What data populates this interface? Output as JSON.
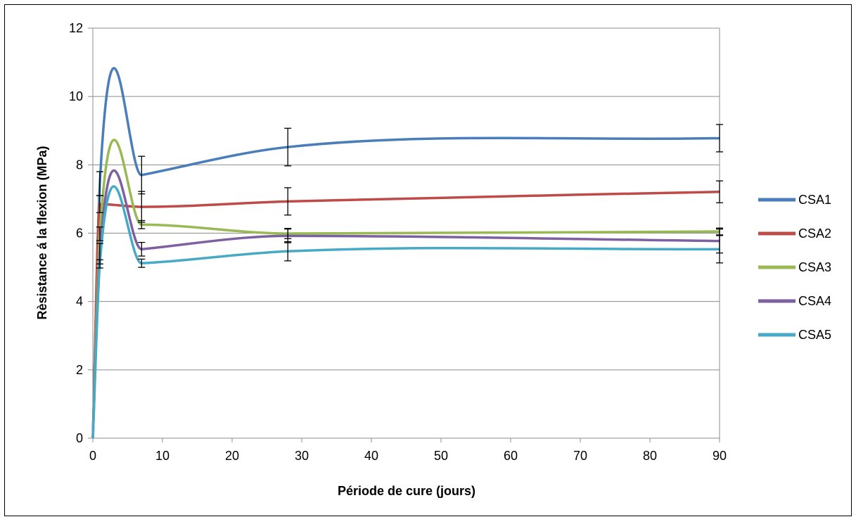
{
  "chart_data": {
    "type": "line",
    "title": "",
    "xlabel": "Période de cure (jours)",
    "ylabel": "Rèsistance á la flexion (MPa)",
    "xlim": [
      0,
      90
    ],
    "ylim": [
      0,
      12
    ],
    "x_ticks": [
      "0",
      "10",
      "20",
      "30",
      "40",
      "50",
      "60",
      "70",
      "80",
      "90"
    ],
    "y_ticks": [
      "0",
      "2",
      "4",
      "6",
      "8",
      "10",
      "12"
    ],
    "grid": "horizontal",
    "legend_position": "right",
    "x": [
      0,
      1,
      7,
      28,
      90
    ],
    "series": [
      {
        "name": "CSA1",
        "color": "#4a7ebb",
        "values": [
          0,
          7.45,
          7.7,
          8.52,
          8.78
        ],
        "error": [
          0,
          0.35,
          0.55,
          0.55,
          0.4
        ]
      },
      {
        "name": "CSA2",
        "color": "#be4b48",
        "values": [
          0,
          6.85,
          6.77,
          6.93,
          7.21
        ],
        "error": [
          0,
          0.25,
          0.45,
          0.4,
          0.32
        ]
      },
      {
        "name": "CSA3",
        "color": "#98b954",
        "values": [
          0,
          5.98,
          6.25,
          5.99,
          6.05
        ],
        "error": [
          0,
          0.2,
          0.12,
          0.15,
          0.1
        ]
      },
      {
        "name": "CSA4",
        "color": "#7d60a0",
        "values": [
          0,
          5.4,
          5.53,
          5.92,
          5.77
        ],
        "error": [
          0,
          0.3,
          0.2,
          0.2,
          0.35
        ]
      },
      {
        "name": "CSA5",
        "color": "#46aac5",
        "values": [
          0,
          5.1,
          5.12,
          5.47,
          5.53
        ],
        "error": [
          0,
          0.12,
          0.12,
          0.28,
          0.4
        ]
      }
    ]
  }
}
